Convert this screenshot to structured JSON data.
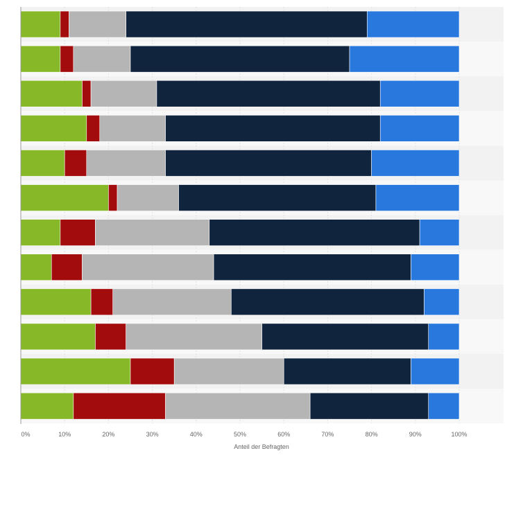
{
  "chart_data": {
    "type": "bar",
    "orientation": "horizontal",
    "stacked": true,
    "categories": [
      "",
      "",
      "",
      "",
      "",
      "",
      "",
      "",
      "",
      "",
      "",
      ""
    ],
    "series": [
      {
        "color": "#86b828",
        "values": [
          9,
          9,
          14,
          15,
          10,
          20,
          9,
          7,
          16,
          17,
          25,
          12
        ]
      },
      {
        "color": "#a20c0c",
        "values": [
          2,
          3,
          2,
          3,
          5,
          2,
          8,
          7,
          5,
          7,
          10,
          21
        ]
      },
      {
        "color": "#b5b5b5",
        "values": [
          13,
          13,
          15,
          15,
          18,
          14,
          26,
          30,
          27,
          31,
          25,
          33
        ]
      },
      {
        "color": "#10243d",
        "values": [
          55,
          50,
          51,
          49,
          47,
          45,
          48,
          45,
          44,
          38,
          29,
          27
        ]
      },
      {
        "color": "#2878dd",
        "values": [
          21,
          25,
          18,
          18,
          20,
          19,
          9,
          11,
          8,
          7,
          11,
          7
        ]
      }
    ],
    "xlim": [
      0,
      100
    ],
    "x_ticks": [
      "0%",
      "10%",
      "20%",
      "30%",
      "40%",
      "50%",
      "60%",
      "70%",
      "80%",
      "90%",
      "100%"
    ],
    "xlabel": "Anteil der Befragten",
    "grid": true,
    "legend": "none"
  }
}
